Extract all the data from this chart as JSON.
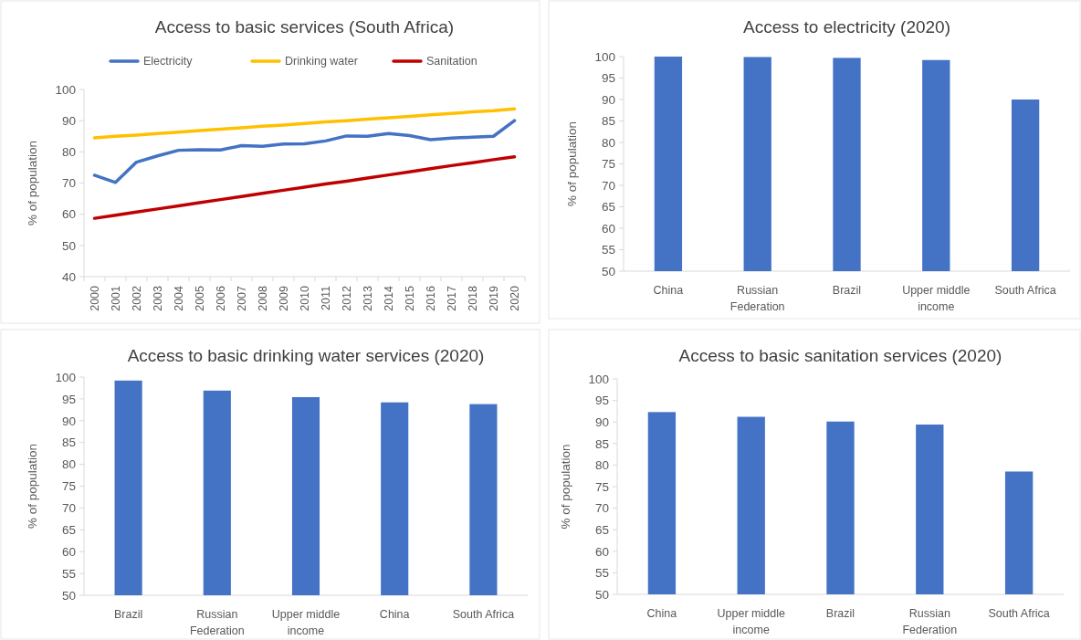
{
  "chart_data": [
    {
      "type": "line",
      "title": "Access to basic services (South Africa)",
      "ylabel": "% of population",
      "categories": [
        "2000",
        "2001",
        "2002",
        "2003",
        "2004",
        "2005",
        "2006",
        "2007",
        "2008",
        "2009",
        "2010",
        "2011",
        "2012",
        "2013",
        "2014",
        "2015",
        "2016",
        "2017",
        "2018",
        "2019",
        "2020"
      ],
      "ylim": [
        40,
        100
      ],
      "yticks": [
        40,
        50,
        60,
        70,
        80,
        90,
        100
      ],
      "legend": "top",
      "line_style": "solid",
      "series": [
        {
          "name": "Electricity",
          "color": "#4472c4",
          "values": [
            72.5,
            70.2,
            76.7,
            78.7,
            80.5,
            80.7,
            80.6,
            82.0,
            81.8,
            82.5,
            82.6,
            83.5,
            85.1,
            85.0,
            85.9,
            85.2,
            83.9,
            84.4,
            84.7,
            85.0,
            90.0
          ]
        },
        {
          "name": "Drinking water",
          "color": "#ffc000",
          "values": [
            84.5,
            85.0,
            85.4,
            85.9,
            86.3,
            86.8,
            87.3,
            87.7,
            88.2,
            88.6,
            89.1,
            89.6,
            90.0,
            90.5,
            90.9,
            91.4,
            91.9,
            92.3,
            92.8,
            93.2,
            93.8
          ]
        },
        {
          "name": "Sanitation",
          "color": "#c00000",
          "values": [
            58.7,
            59.7,
            60.7,
            61.7,
            62.7,
            63.7,
            64.7,
            65.7,
            66.7,
            67.7,
            68.7,
            69.7,
            70.6,
            71.6,
            72.6,
            73.6,
            74.6,
            75.6,
            76.5,
            77.5,
            78.4
          ]
        }
      ]
    },
    {
      "type": "bar",
      "title": "Access to electricity (2020)",
      "ylabel": "% of population",
      "categories": [
        "China",
        "Russian Federation",
        "Brazil",
        "Upper middle income",
        "South Africa"
      ],
      "values": [
        100,
        99.9,
        99.7,
        99.2,
        90.0
      ],
      "color": "#4472c4",
      "ylim": [
        50,
        100
      ],
      "yticks": [
        50,
        55,
        60,
        65,
        70,
        75,
        80,
        85,
        90,
        95,
        100
      ]
    },
    {
      "type": "bar",
      "title": "Access to basic drinking water services (2020)",
      "ylabel": "% of population",
      "categories": [
        "Brazil",
        "Russian Federation",
        "Upper middle income",
        "China",
        "South Africa"
      ],
      "values": [
        99.2,
        96.9,
        95.4,
        94.2,
        93.8
      ],
      "color": "#4472c4",
      "ylim": [
        50,
        100
      ],
      "yticks": [
        50,
        55,
        60,
        65,
        70,
        75,
        80,
        85,
        90,
        95,
        100
      ]
    },
    {
      "type": "bar",
      "title": "Access to basic sanitation services (2020)",
      "ylabel": "% of population",
      "categories": [
        "China",
        "Upper middle income",
        "Brazil",
        "Russian Federation",
        "South Africa"
      ],
      "values": [
        92.3,
        91.2,
        90.1,
        89.4,
        78.5
      ],
      "color": "#4472c4",
      "ylim": [
        50,
        100
      ],
      "yticks": [
        50,
        55,
        60,
        65,
        70,
        75,
        80,
        85,
        90,
        95,
        100
      ]
    }
  ]
}
